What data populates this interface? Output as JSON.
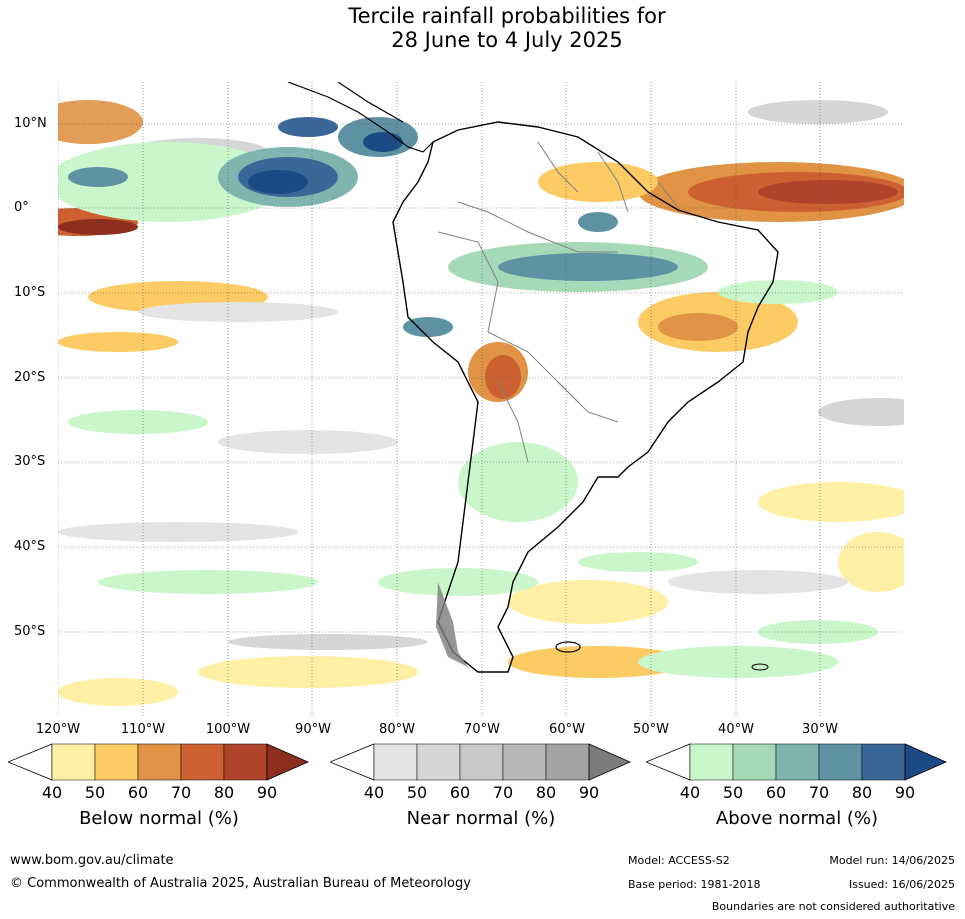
{
  "title": {
    "line1": "Tercile rainfall probabilities for",
    "line2": "28 June to 4 July 2025"
  },
  "map": {
    "lat_labels": [
      "10°N",
      "0°",
      "10°S",
      "20°S",
      "30°S",
      "40°S",
      "50°S"
    ],
    "lon_labels": [
      "120°W",
      "110°W",
      "100°W",
      "90°W",
      "80°W",
      "70°W",
      "60°W",
      "50°W",
      "40°W",
      "30°W"
    ],
    "colors": {
      "below": [
        "#fff0a6",
        "#fdcb63",
        "#e09245",
        "#cc6030",
        "#b0442a",
        "#8d2e1e"
      ],
      "near": [
        "#e4e4e4",
        "#d6d6d6",
        "#c8c8c8",
        "#b8b8b8",
        "#a4a4a4",
        "#7c7c7c"
      ],
      "above": [
        "#c9f7cb",
        "#a5d9b8",
        "#7fb5ae",
        "#5e92a3",
        "#3a6698",
        "#1b4a84"
      ],
      "coast": "#000000",
      "borders": "#808080"
    }
  },
  "legends": [
    {
      "title": "Below normal (%)",
      "ticks": [
        "40",
        "50",
        "60",
        "70",
        "80",
        "90"
      ]
    },
    {
      "title": "Near normal (%)",
      "ticks": [
        "40",
        "50",
        "60",
        "70",
        "80",
        "90"
      ]
    },
    {
      "title": "Above normal (%)",
      "ticks": [
        "40",
        "50",
        "60",
        "70",
        "80",
        "90"
      ]
    }
  ],
  "footer": {
    "url": "www.bom.gov.au/climate",
    "copyright": "© Commonwealth of Australia 2025, Australian Bureau of Meteorology",
    "model": "Model: ACCESS-S2",
    "base_period": "Base period: 1981-2018",
    "model_run": "Model run: 14/06/2025",
    "issued": "Issued: 16/06/2025",
    "disclaimer": "Boundaries are not considered authoritative"
  }
}
